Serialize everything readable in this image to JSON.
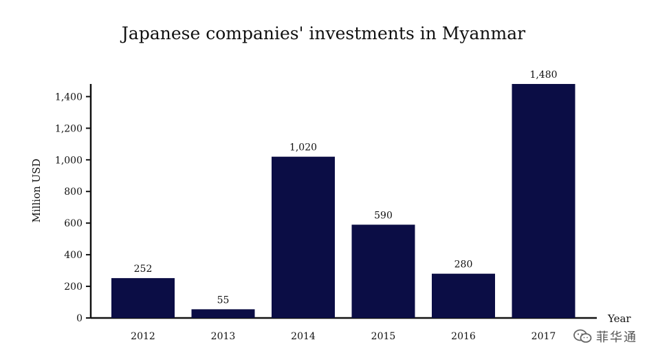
{
  "chart_data": {
    "type": "bar",
    "title": "Japanese companies' investments in Myanmar",
    "xlabel": "Year",
    "ylabel": "Million USD",
    "categories": [
      "2012",
      "2013",
      "2014",
      "2015",
      "2016",
      "2017"
    ],
    "values": [
      252,
      55,
      1020,
      590,
      280,
      1480
    ],
    "value_labels": [
      "252",
      "55",
      "1,020",
      "590",
      "280",
      "1,480"
    ],
    "y_ticks": [
      0,
      200,
      400,
      600,
      800,
      1000,
      1200,
      1400
    ],
    "y_tick_labels": [
      "0",
      "200",
      "400",
      "600",
      "800",
      "1,000",
      "1,200",
      "1,400"
    ],
    "ylim": [
      0,
      1480
    ],
    "grid": false,
    "bar_color": "#0b0d45"
  },
  "watermark": {
    "text": "菲华通",
    "icon": "wechat-icon"
  }
}
